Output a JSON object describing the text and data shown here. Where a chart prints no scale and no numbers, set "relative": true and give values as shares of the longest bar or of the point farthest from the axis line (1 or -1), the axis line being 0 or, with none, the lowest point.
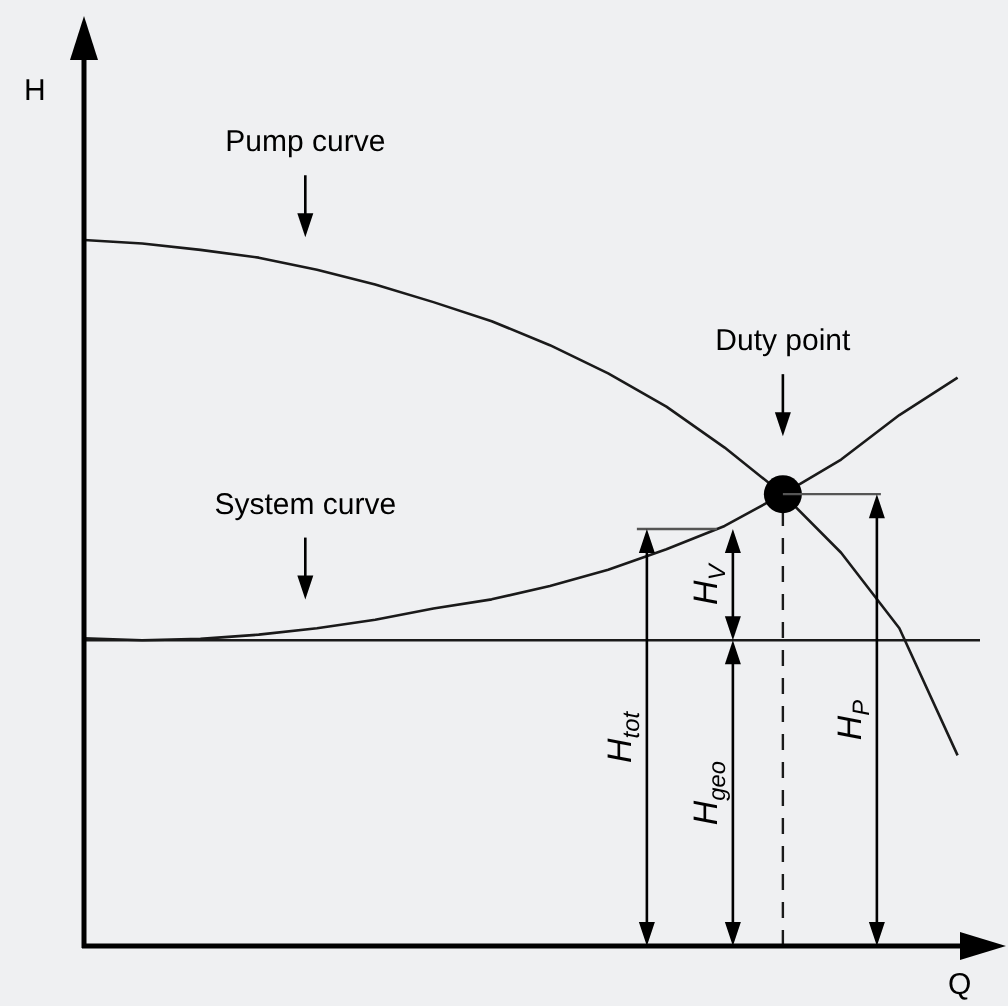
{
  "chart_data": {
    "type": "line",
    "relative": true,
    "xlabel": "Q",
    "ylabel": "H",
    "line_style": "solid",
    "categories": [
      null,
      null,
      null,
      null,
      null,
      null,
      null,
      null,
      null,
      null,
      null,
      null,
      null,
      null,
      null,
      null
    ],
    "series": [
      {
        "color": "#1a1a1a",
        "values": [
          1.0,
          0.995,
          0.986,
          0.975,
          0.958,
          0.937,
          0.912,
          0.885,
          0.851,
          0.811,
          0.764,
          0.706,
          0.64,
          0.557,
          0.45,
          0.27
        ]
      },
      {
        "color": "#1a1a1a",
        "values": [
          0.436,
          0.433,
          0.435,
          0.441,
          0.45,
          0.462,
          0.478,
          0.491,
          0.51,
          0.533,
          0.562,
          0.595,
          0.64,
          0.689,
          0.752,
          0.805
        ]
      }
    ],
    "ref_lines": [
      {
        "axis": "y",
        "value": 0.433,
        "color": "#1a1a1a",
        "line_style": "solid"
      }
    ],
    "annotations": [
      "Pump curve",
      "System curve",
      "Duty point",
      "H$_{tot}$",
      "H$_{geo}$",
      "H$_{V}$",
      "H$_{P}$"
    ]
  }
}
